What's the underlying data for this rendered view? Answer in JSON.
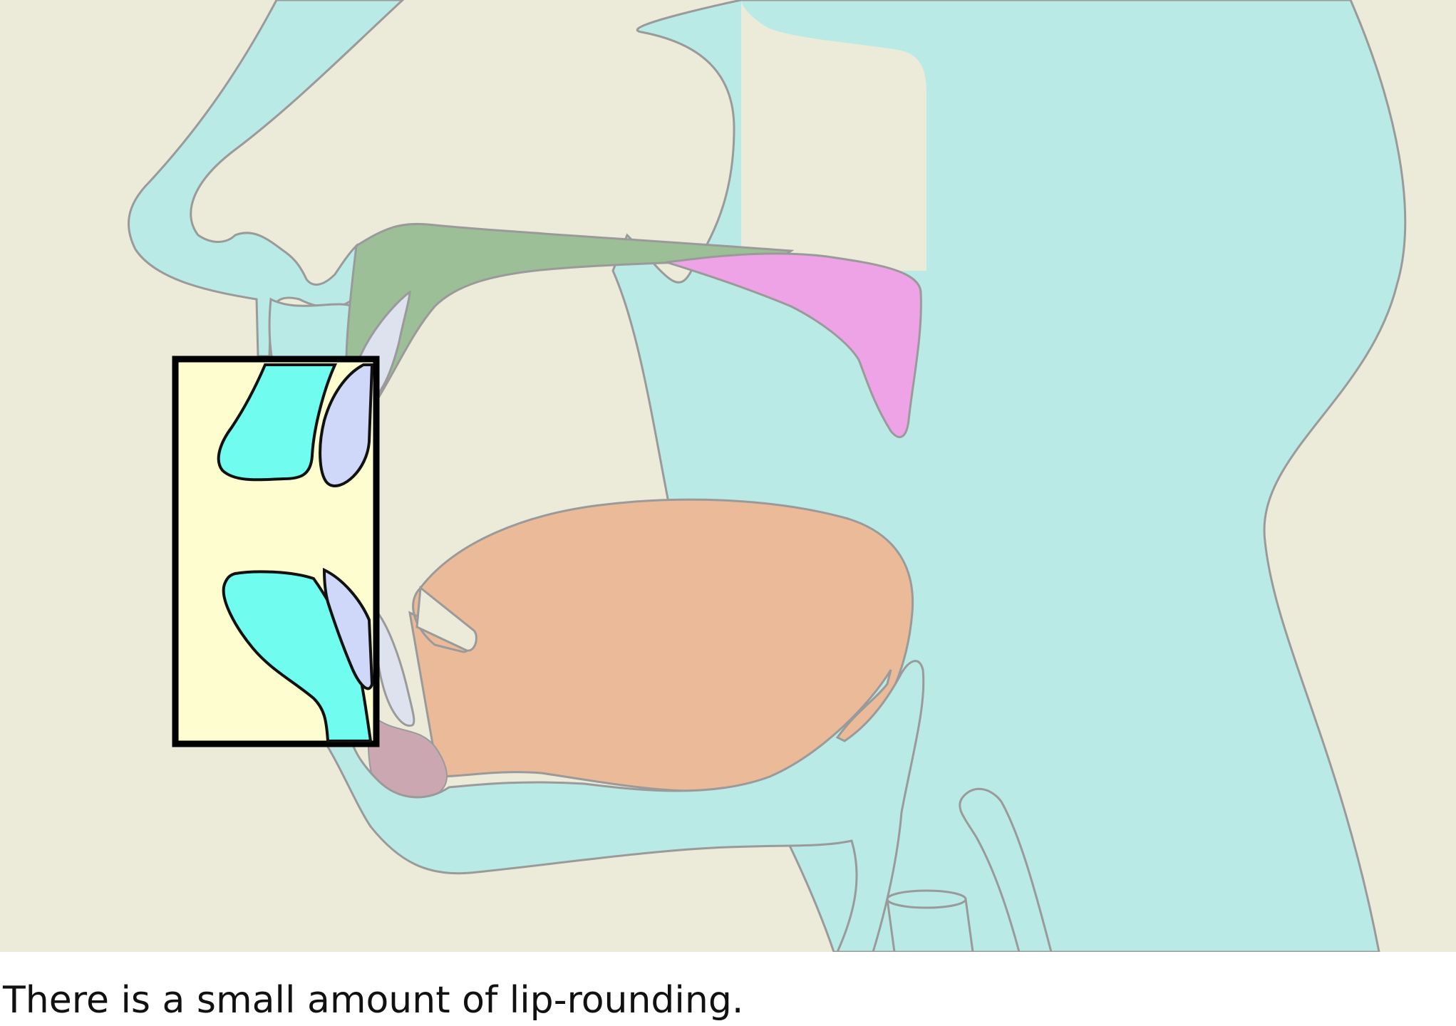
{
  "figure": {
    "caption": "There is a small amount of lip-rounding."
  },
  "colors": {
    "background": "#ECEAD8",
    "tissue": "#B9EAE6",
    "outline": "#9A9A9A",
    "hard_palate": "#9DBF98",
    "velum": "#EDA3E5",
    "tongue": "#EBBB99",
    "teeth": "#DDE2EE",
    "inset_background": "#FEFDCF",
    "inset_lips": "#70FCEE",
    "inset_teeth": "#CFD8F8"
  }
}
